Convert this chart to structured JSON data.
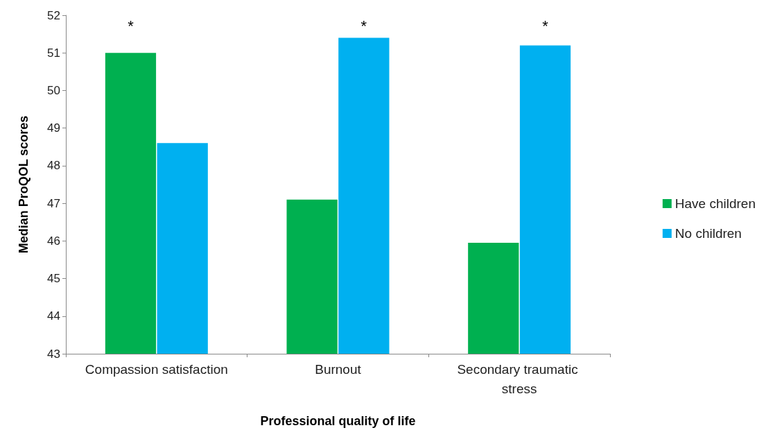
{
  "chart_data": {
    "type": "bar",
    "xlabel": "Professional quality of life",
    "ylabel": "Median ProQOL scores",
    "categories": [
      "Compassion satisfaction",
      "Burnout",
      "Secondary traumatic stress"
    ],
    "series": [
      {
        "name": "Have children",
        "color": "#00b050",
        "values": [
          51.0,
          47.1,
          45.95
        ]
      },
      {
        "name": "No children",
        "color": "#00b0f0",
        "values": [
          48.6,
          51.4,
          51.2
        ]
      }
    ],
    "ylim": [
      43,
      52
    ],
    "yticks": [
      43,
      44,
      45,
      46,
      47,
      48,
      49,
      50,
      51,
      52
    ],
    "grid": false,
    "legend": "right",
    "annotations": [
      "*",
      "*",
      "*"
    ]
  }
}
